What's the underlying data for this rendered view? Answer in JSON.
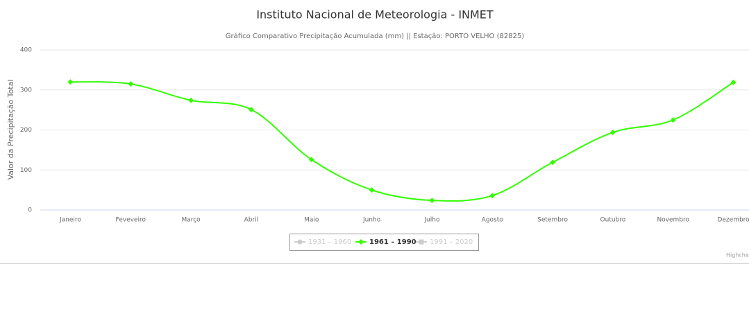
{
  "chart_data": {
    "type": "spline",
    "title": "Instituto Nacional de Meteorologia - INMET",
    "subtitle": "Gráfico Comparativo Precipitação Acumulada (mm) || Estação: PORTO VELHO (82825)",
    "y_axis_label": "Valor da Precipitação Total",
    "categories": [
      "Janeiro",
      "Feveveiro",
      "Março",
      "Abril",
      "Maio",
      "Junho",
      "Julho",
      "Agosto",
      "Setembro",
      "Outubro",
      "Novembro",
      "Dezembro"
    ],
    "series": [
      {
        "name": "1931 – 1960",
        "color": "#cccccc",
        "visible": false,
        "values": [
          null,
          null,
          null,
          null,
          null,
          null,
          null,
          null,
          null,
          null,
          null,
          null
        ]
      },
      {
        "name": "1961 – 1990",
        "color": "#33ff00",
        "visible": true,
        "values": [
          320,
          315,
          274,
          251,
          126,
          50,
          24,
          36,
          119,
          194,
          225,
          319
        ]
      },
      {
        "name": "1991 – 2020",
        "color": "#cccccc",
        "visible": false,
        "values": [
          null,
          null,
          null,
          null,
          null,
          null,
          null,
          null,
          null,
          null,
          null,
          null
        ]
      }
    ],
    "ylim": [
      0,
      400
    ],
    "yticks": [
      0,
      100,
      200,
      300,
      400
    ],
    "grid": true,
    "credits": "Highcharts.com"
  }
}
